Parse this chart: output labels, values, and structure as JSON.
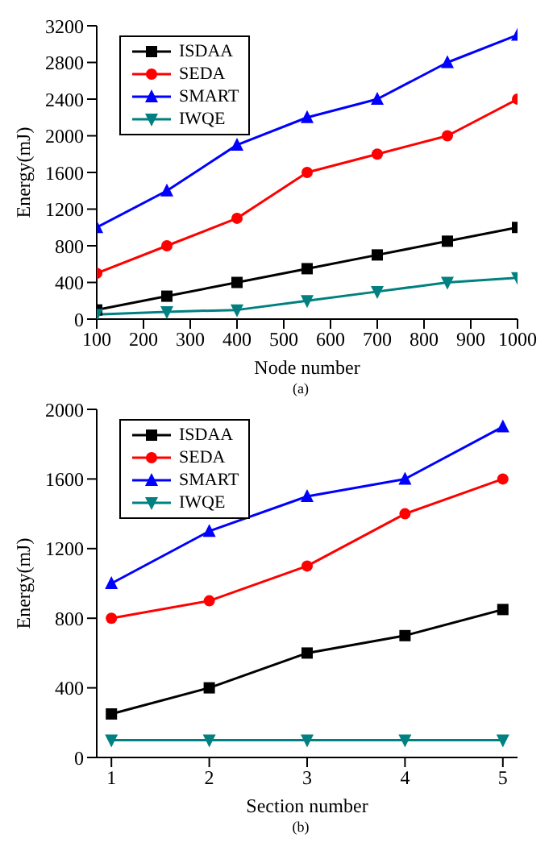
{
  "chart_data": [
    {
      "type": "line",
      "x": [
        100,
        250,
        400,
        550,
        700,
        850,
        1000
      ],
      "xlabel": "Node number",
      "ylabel": "Energy(mJ)",
      "xlim": [
        100,
        1000
      ],
      "xticks": [
        100,
        200,
        300,
        400,
        500,
        600,
        700,
        800,
        900,
        1000
      ],
      "ylim": [
        0,
        3200
      ],
      "yticks": [
        0,
        400,
        800,
        1200,
        1600,
        2000,
        2400,
        2800,
        3200
      ],
      "grid": false,
      "legend": "top left",
      "annotations": [
        "(a)"
      ],
      "series": [
        {
          "name": "ISDAA",
          "color": "#000000",
          "marker": "square",
          "values": [
            100,
            250,
            400,
            550,
            700,
            850,
            1000
          ]
        },
        {
          "name": "SEDA",
          "color": "#ff0000",
          "marker": "circle",
          "values": [
            500,
            800,
            1100,
            1600,
            1800,
            2000,
            2400
          ]
        },
        {
          "name": "SMART",
          "color": "#0000ff",
          "marker": "triangle",
          "values": [
            1000,
            1400,
            1900,
            2200,
            2400,
            2800,
            3100
          ]
        },
        {
          "name": "IWQE",
          "color": "#008080",
          "marker": "triangle-down",
          "values": [
            50,
            80,
            100,
            200,
            300,
            400,
            450
          ]
        }
      ]
    },
    {
      "type": "line",
      "x": [
        1,
        2,
        3,
        4,
        5
      ],
      "xlabel": "Section number",
      "ylabel": "Energy(mJ)",
      "xlim": [
        0.85,
        5.15
      ],
      "xticks": [
        1,
        2,
        3,
        4,
        5
      ],
      "ylim": [
        0,
        2000
      ],
      "yticks": [
        0,
        400,
        800,
        1200,
        1600,
        2000
      ],
      "grid": false,
      "legend": "top left",
      "annotations": [
        "(b)"
      ],
      "series": [
        {
          "name": "ISDAA",
          "color": "#000000",
          "marker": "square",
          "values": [
            250,
            400,
            600,
            700,
            850
          ]
        },
        {
          "name": "SEDA",
          "color": "#ff0000",
          "marker": "circle",
          "values": [
            800,
            900,
            1100,
            1400,
            1600
          ]
        },
        {
          "name": "SMART",
          "color": "#0000ff",
          "marker": "triangle",
          "values": [
            1000,
            1300,
            1500,
            1600,
            1900
          ]
        },
        {
          "name": "IWQE",
          "color": "#008080",
          "marker": "triangle-down",
          "values": [
            100,
            100,
            100,
            100,
            100
          ]
        }
      ]
    }
  ]
}
